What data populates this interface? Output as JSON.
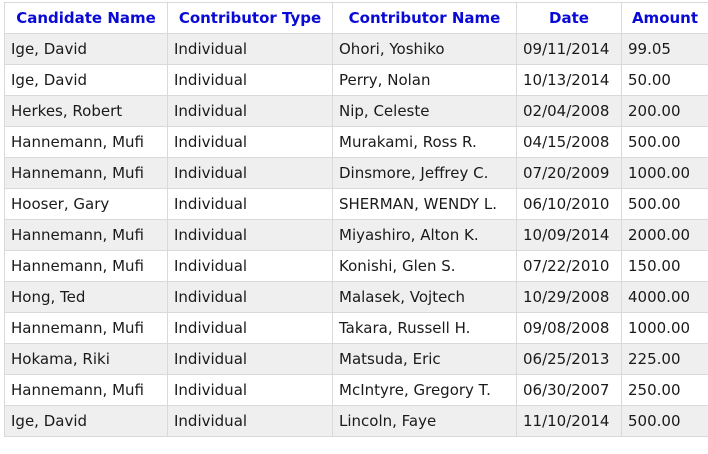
{
  "table": {
    "headers": [
      "Candidate Name",
      "Contributor Type",
      "Contributor Name",
      "Date",
      "Amount"
    ],
    "rows": [
      [
        "Ige, David",
        "Individual",
        "Ohori, Yoshiko",
        "09/11/2014",
        "99.05"
      ],
      [
        "Ige, David",
        "Individual",
        "Perry, Nolan",
        "10/13/2014",
        "50.00"
      ],
      [
        "Herkes, Robert",
        "Individual",
        "Nip, Celeste",
        "02/04/2008",
        "200.00"
      ],
      [
        "Hannemann, Mufi",
        "Individual",
        "Murakami, Ross R.",
        "04/15/2008",
        "500.00"
      ],
      [
        "Hannemann, Mufi",
        "Individual",
        "Dinsmore, Jeffrey C.",
        "07/20/2009",
        "1000.00"
      ],
      [
        "Hooser, Gary",
        "Individual",
        "SHERMAN, WENDY L.",
        "06/10/2010",
        "500.00"
      ],
      [
        "Hannemann, Mufi",
        "Individual",
        "Miyashiro, Alton K.",
        "10/09/2014",
        "2000.00"
      ],
      [
        "Hannemann, Mufi",
        "Individual",
        "Konishi, Glen S.",
        "07/22/2010",
        "150.00"
      ],
      [
        "Hong, Ted",
        "Individual",
        "Malasek, Vojtech",
        "10/29/2008",
        "4000.00"
      ],
      [
        "Hannemann, Mufi",
        "Individual",
        "Takara, Russell H.",
        "09/08/2008",
        "1000.00"
      ],
      [
        "Hokama, Riki",
        "Individual",
        "Matsuda, Eric",
        "06/25/2013",
        "225.00"
      ],
      [
        "Hannemann, Mufi",
        "Individual",
        "McIntyre, Gregory T.",
        "06/30/2007",
        "250.00"
      ],
      [
        "Ige, David",
        "Individual",
        "Lincoln, Faye",
        "11/10/2014",
        "500.00"
      ]
    ]
  }
}
